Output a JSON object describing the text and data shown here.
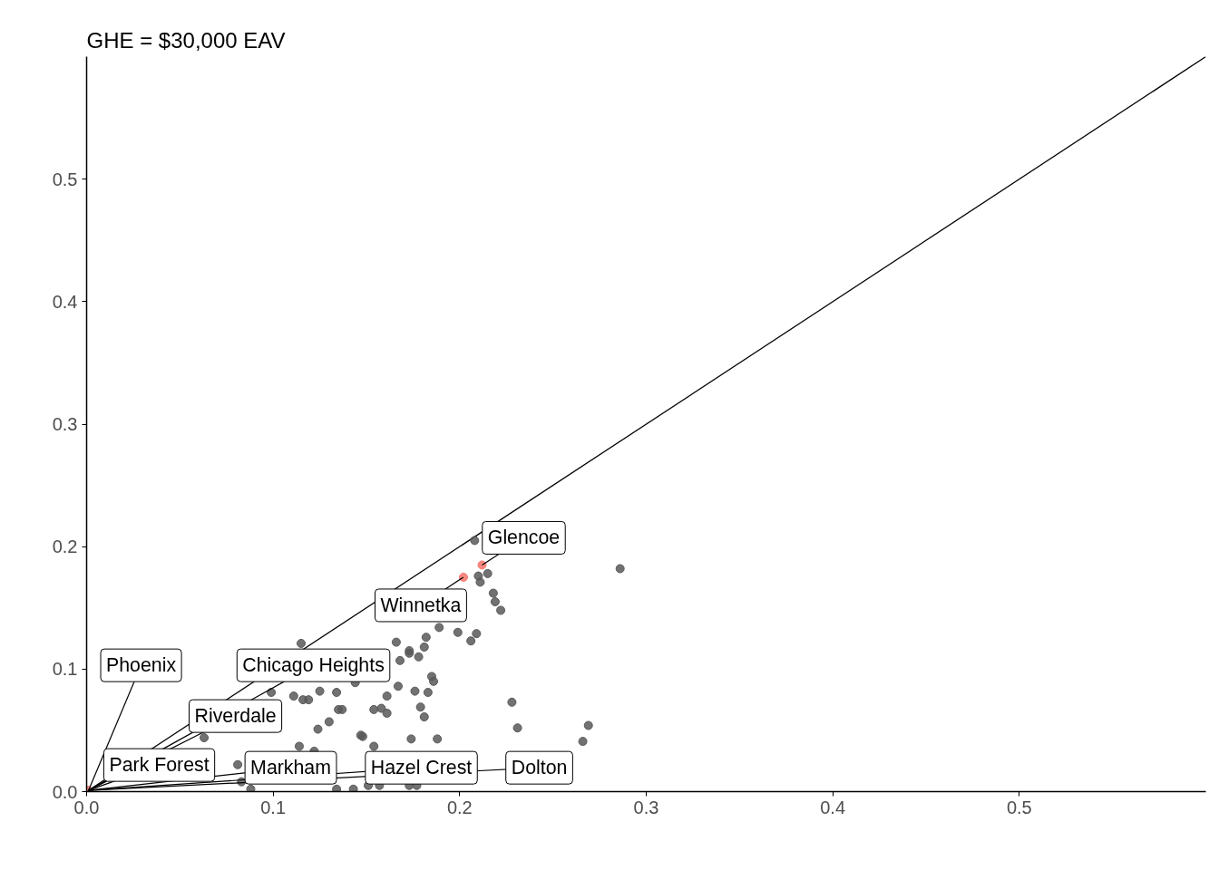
{
  "chart_data": {
    "type": "scatter",
    "title": "GHE = $30,000 EAV",
    "xlim": [
      0,
      0.6
    ],
    "ylim": [
      0,
      0.6
    ],
    "xticks": [
      {
        "value": 0,
        "label": "0.0"
      },
      0.1,
      0.2,
      0.3,
      0.4,
      0.5
    ],
    "yticks": [
      {
        "value": 0,
        "label": "0.0"
      },
      0.1,
      0.2,
      0.3,
      0.4,
      0.5
    ],
    "grid": false,
    "marker": "circle",
    "series": [
      {
        "type": "line",
        "marker": "none",
        "color": "#000000",
        "x": [
          0,
          0.6
        ],
        "values": [
          0,
          0.6
        ]
      },
      {
        "color": "#595959",
        "x": [
          0.208,
          0.21,
          0.211,
          0.215,
          0.218,
          0.219,
          0.222,
          0.189,
          0.199,
          0.209,
          0.206,
          0.166,
          0.182,
          0.181,
          0.173,
          0.173,
          0.178,
          0.168,
          0.185,
          0.186,
          0.167,
          0.176,
          0.183,
          0.161,
          0.154,
          0.158,
          0.161,
          0.179,
          0.181,
          0.228,
          0.231,
          0.286,
          0.269,
          0.266,
          0.174,
          0.188,
          0.154,
          0.148,
          0.151,
          0.157,
          0.173,
          0.177,
          0.115,
          0.099,
          0.111,
          0.116,
          0.119,
          0.125,
          0.134,
          0.144,
          0.135,
          0.137,
          0.13,
          0.124,
          0.147,
          0.063,
          0.114,
          0.122,
          0.081,
          0.083,
          0.088,
          0.134,
          0.143
        ],
        "values": [
          0.205,
          0.176,
          0.171,
          0.178,
          0.162,
          0.155,
          0.148,
          0.134,
          0.13,
          0.129,
          0.123,
          0.122,
          0.126,
          0.118,
          0.115,
          0.113,
          0.11,
          0.107,
          0.094,
          0.09,
          0.086,
          0.082,
          0.081,
          0.078,
          0.067,
          0.068,
          0.064,
          0.069,
          0.061,
          0.073,
          0.052,
          0.182,
          0.054,
          0.041,
          0.043,
          0.043,
          0.037,
          0.045,
          0.005,
          0.005,
          0.005,
          0.005,
          0.121,
          0.081,
          0.078,
          0.075,
          0.075,
          0.082,
          0.081,
          0.089,
          0.067,
          0.067,
          0.057,
          0.051,
          0.046,
          0.044,
          0.037,
          0.033,
          0.022,
          0.008,
          0.002,
          0.002,
          0.002
        ]
      },
      {
        "color": "#f8766d",
        "x": [
          0.212,
          0.202,
          0.001
        ],
        "values": [
          0.185,
          0.175,
          0.001
        ]
      }
    ],
    "annotations": [
      {
        "text": "Glencoe",
        "x": 0.212,
        "y": 0.185
      },
      {
        "text": "Winnetka",
        "x": 0.202,
        "y": 0.175
      },
      {
        "text": "Phoenix",
        "x": 0.001,
        "y": 0.001
      },
      {
        "text": "Chicago Heights",
        "x": 0.001,
        "y": 0.001
      },
      {
        "text": "Riverdale",
        "x": 0.001,
        "y": 0.001
      },
      {
        "text": "Park Forest",
        "x": 0.001,
        "y": 0.001
      },
      {
        "text": "Markham",
        "x": 0.001,
        "y": 0.001
      },
      {
        "text": "Hazel Crest",
        "x": 0.001,
        "y": 0.001
      },
      {
        "text": "Dolton",
        "x": 0.001,
        "y": 0.001
      }
    ]
  }
}
